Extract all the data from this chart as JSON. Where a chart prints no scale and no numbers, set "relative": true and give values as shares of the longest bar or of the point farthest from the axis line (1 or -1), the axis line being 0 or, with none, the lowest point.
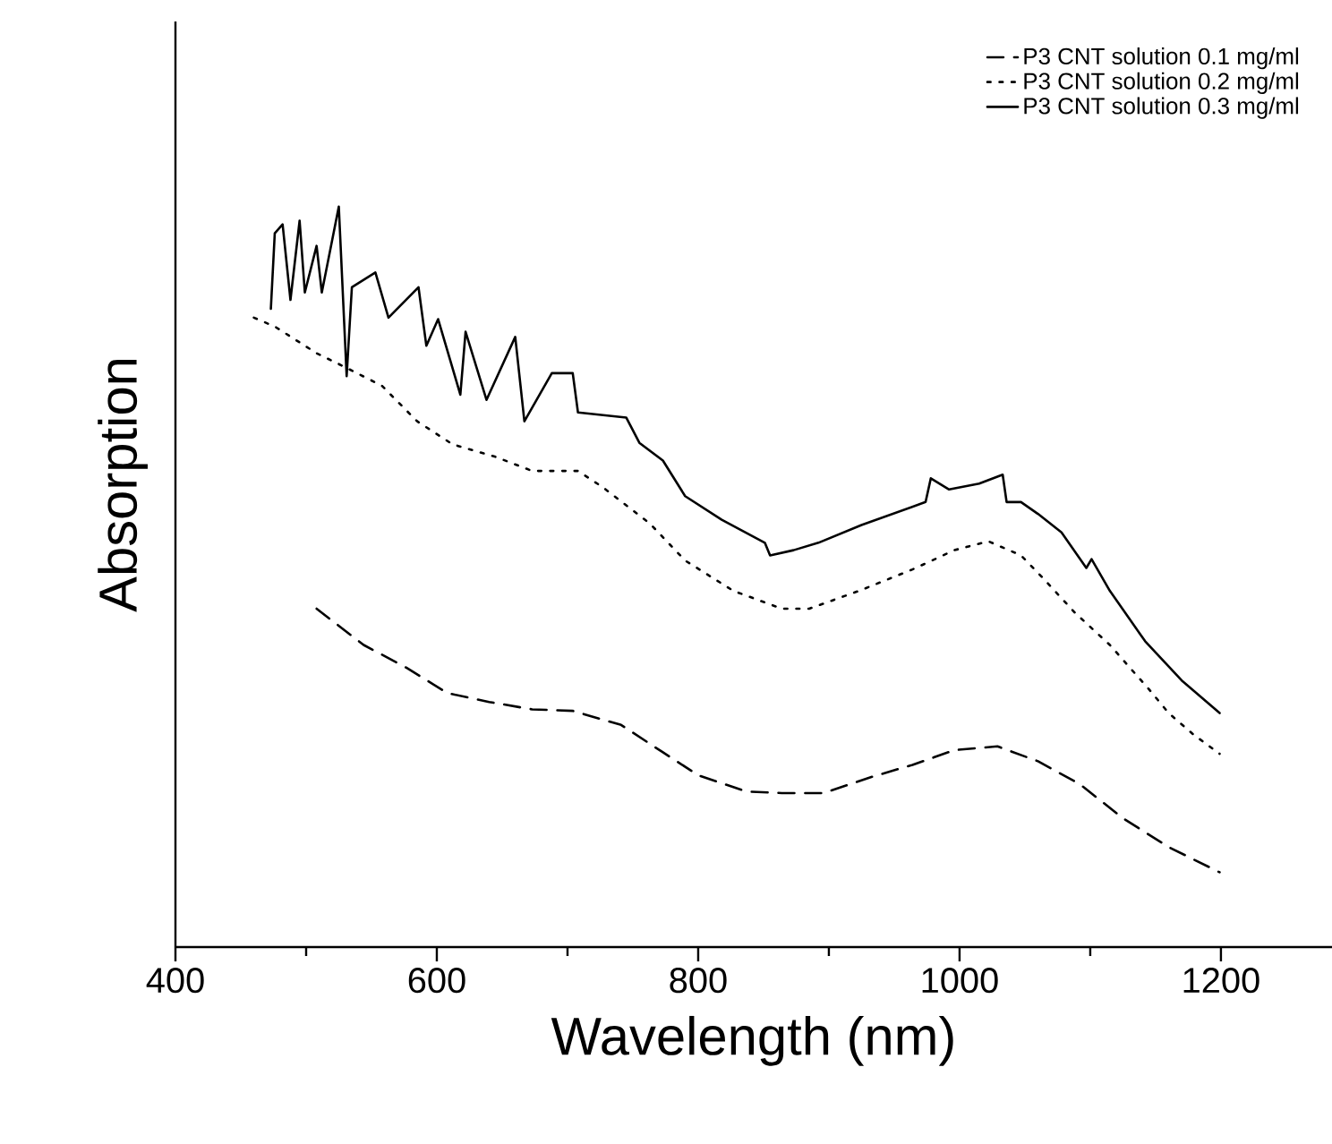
{
  "chart_data": {
    "type": "line",
    "xlabel": "Wavelength (nm)",
    "ylabel": "Absorption",
    "relative": true,
    "xlim": [
      400,
      1285
    ],
    "xticks": [
      400,
      600,
      800,
      1000,
      1200
    ],
    "legend": "top right",
    "grid": false,
    "series": [
      {
        "name": "P3 CNT solution 0.1 mg/ml",
        "color": "#000000",
        "line_style": "dashed",
        "x": [
          508,
          544,
          577,
          608,
          640,
          673,
          704,
          741,
          773,
          800,
          837,
          864,
          896,
          933,
          964,
          996,
          1029,
          1060,
          1092,
          1125,
          1160,
          1199
        ],
        "values": [
          0.457,
          0.408,
          0.377,
          0.343,
          0.331,
          0.321,
          0.319,
          0.3,
          0.263,
          0.232,
          0.21,
          0.208,
          0.208,
          0.23,
          0.246,
          0.266,
          0.271,
          0.251,
          0.22,
          0.174,
          0.135,
          0.101
        ]
      },
      {
        "name": "P3 CNT solution 0.2 mg/ml",
        "color": "#000000",
        "line_style": "dotted",
        "x": [
          460,
          476,
          508,
          530,
          558,
          585,
          612,
          645,
          673,
          708,
          727,
          763,
          790,
          827,
          864,
          885,
          923,
          964,
          996,
          1022,
          1047,
          1064,
          1088,
          1115,
          1145,
          1160,
          1179,
          1199
        ],
        "values": [
          0.85,
          0.838,
          0.802,
          0.783,
          0.758,
          0.71,
          0.679,
          0.662,
          0.643,
          0.643,
          0.621,
          0.572,
          0.522,
          0.481,
          0.457,
          0.457,
          0.481,
          0.51,
          0.536,
          0.548,
          0.529,
          0.498,
          0.452,
          0.408,
          0.348,
          0.316,
          0.287,
          0.261
        ]
      },
      {
        "name": "P3 CNT solution 0.3 mg/ml",
        "color": "#000000",
        "line_style": "solid",
        "x": [
          473,
          476,
          482,
          488,
          495,
          499,
          508,
          512,
          525,
          531,
          535,
          553,
          563,
          586,
          592,
          601,
          618,
          622,
          638,
          660,
          667,
          688,
          704,
          708,
          745,
          755,
          773,
          790,
          818,
          851,
          855,
          873,
          892,
          925,
          974,
          978,
          992,
          1015,
          1033,
          1036,
          1047,
          1060,
          1078,
          1097,
          1101,
          1115,
          1142,
          1170,
          1199
        ],
        "values": [
          0.862,
          0.964,
          0.976,
          0.874,
          0.981,
          0.884,
          0.947,
          0.884,
          1.0,
          0.771,
          0.891,
          0.911,
          0.85,
          0.891,
          0.812,
          0.848,
          0.746,
          0.831,
          0.739,
          0.824,
          0.71,
          0.775,
          0.775,
          0.722,
          0.715,
          0.681,
          0.657,
          0.609,
          0.577,
          0.546,
          0.529,
          0.536,
          0.546,
          0.57,
          0.601,
          0.633,
          0.618,
          0.626,
          0.638,
          0.601,
          0.601,
          0.585,
          0.56,
          0.512,
          0.524,
          0.481,
          0.413,
          0.36,
          0.316
        ]
      }
    ]
  }
}
